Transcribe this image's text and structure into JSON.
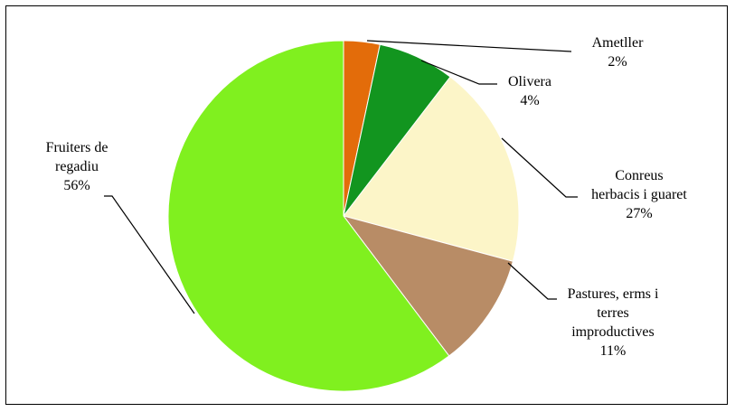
{
  "chart_data": {
    "type": "pie",
    "title": "",
    "legend": "none",
    "slices": [
      {
        "label_lines": [
          "Ametller"
        ],
        "percent_label": "2%",
        "value": 2,
        "color": "#e36c0a"
      },
      {
        "label_lines": [
          "Olivera"
        ],
        "percent_label": "4%",
        "value": 4,
        "color": "#12951f"
      },
      {
        "label_lines": [
          "Conreus",
          "herbacis i guaret"
        ],
        "percent_label": "27%",
        "value": 27,
        "color": "#fcf5c8"
      },
      {
        "label_lines": [
          "Pastures, erms i",
          "terres",
          "improductives"
        ],
        "percent_label": "11%",
        "value": 11,
        "color": "#b88c66"
      },
      {
        "label_lines": [
          "Fruiters de",
          "regadiu"
        ],
        "percent_label": "56%",
        "value": 56,
        "color": "#80f01f"
      }
    ]
  }
}
